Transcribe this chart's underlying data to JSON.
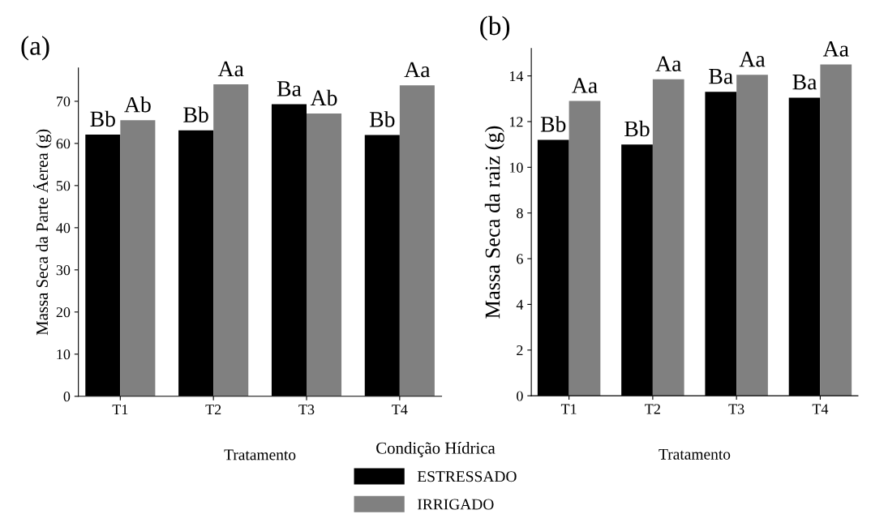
{
  "chart_data": [
    {
      "type": "bar",
      "title": "(a)",
      "xlabel": "Tratamento",
      "ylabel": "Massa Seca da Parte Áerea (g)",
      "categories": [
        "T1",
        "T2",
        "T3",
        "T4"
      ],
      "series": [
        {
          "name": "ESTRESSADO",
          "color": "#000000",
          "values": [
            62.1,
            63.1,
            69.3,
            62.0
          ],
          "value_labels": [
            "Bb",
            "Bb",
            "Ba",
            "Bb"
          ]
        },
        {
          "name": "IRRIGADO",
          "color": "#808080",
          "values": [
            65.5,
            74.0,
            67.1,
            73.8
          ],
          "value_labels": [
            "Ab",
            "Aa",
            "Ab",
            "Aa"
          ]
        }
      ],
      "ylim": [
        0,
        77.9
      ],
      "yticks": [
        0,
        10,
        20,
        30,
        40,
        50,
        60,
        70
      ],
      "grid": false,
      "legend": "bottom",
      "legend_title": "Condição Hídrica"
    },
    {
      "type": "bar",
      "title": "(b)",
      "xlabel": "Tratamento",
      "ylabel": "Massa Seca da raiz (g)",
      "categories": [
        "T1",
        "T2",
        "T3",
        "T4"
      ],
      "series": [
        {
          "color": "#000000",
          "values": [
            11.2,
            11.0,
            13.3,
            13.05
          ],
          "value_labels": [
            "Bb",
            "Bb",
            "Ba",
            "Ba"
          ]
        },
        {
          "color": "#808080",
          "values": [
            12.9,
            13.85,
            14.05,
            14.5
          ],
          "value_labels": [
            "Aa",
            "Aa",
            "Aa",
            "Aa"
          ]
        }
      ],
      "ylim": [
        0,
        15.2
      ],
      "yticks": [
        0,
        2,
        4,
        6,
        8,
        10,
        12,
        14
      ],
      "grid": false,
      "legend": false
    }
  ]
}
